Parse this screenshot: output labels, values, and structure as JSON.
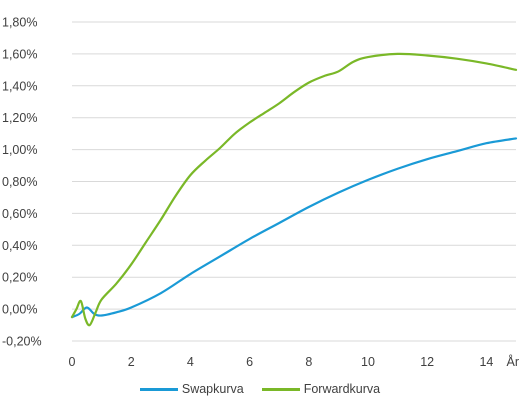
{
  "chart_data": {
    "type": "line",
    "title": "",
    "xlabel": "",
    "ylabel": "",
    "x_unit_label": "År",
    "xlim": [
      0,
      15
    ],
    "ylim": [
      -0.2,
      1.8
    ],
    "x_ticks": [
      0,
      2,
      4,
      6,
      8,
      10,
      12,
      14
    ],
    "x_tick_labels": [
      "0",
      "2",
      "4",
      "6",
      "8",
      "10",
      "12",
      "14"
    ],
    "y_ticks": [
      -0.2,
      0.0,
      0.2,
      0.4,
      0.6,
      0.8,
      1.0,
      1.2,
      1.4,
      1.6,
      1.8
    ],
    "y_tick_labels": [
      "-0,20%",
      "0,00%",
      "0,20%",
      "0,40%",
      "0,60%",
      "0,80%",
      "1,00%",
      "1,20%",
      "1,40%",
      "1,60%",
      "1,80%"
    ],
    "grid": "horizontal",
    "legend_position": "bottom",
    "series": [
      {
        "name": "Swapkurva",
        "color": "#1a9ad6",
        "points": [
          [
            0.0,
            -0.05
          ],
          [
            0.25,
            -0.03
          ],
          [
            0.5,
            0.01
          ],
          [
            0.75,
            -0.03
          ],
          [
            1.0,
            -0.04
          ],
          [
            1.5,
            -0.02
          ],
          [
            2.0,
            0.01
          ],
          [
            3.0,
            0.1
          ],
          [
            4.0,
            0.22
          ],
          [
            5.0,
            0.33
          ],
          [
            6.0,
            0.44
          ],
          [
            7.0,
            0.54
          ],
          [
            8.0,
            0.64
          ],
          [
            9.0,
            0.73
          ],
          [
            10.0,
            0.81
          ],
          [
            11.0,
            0.88
          ],
          [
            12.0,
            0.94
          ],
          [
            13.0,
            0.99
          ],
          [
            14.0,
            1.04
          ],
          [
            15.0,
            1.07
          ]
        ]
      },
      {
        "name": "Forwardkurva",
        "color": "#7ab828",
        "points": [
          [
            0.0,
            -0.05
          ],
          [
            0.15,
            0.0
          ],
          [
            0.3,
            0.05
          ],
          [
            0.45,
            -0.06
          ],
          [
            0.6,
            -0.1
          ],
          [
            0.8,
            -0.02
          ],
          [
            1.0,
            0.06
          ],
          [
            1.5,
            0.16
          ],
          [
            2.0,
            0.28
          ],
          [
            2.5,
            0.42
          ],
          [
            3.0,
            0.56
          ],
          [
            3.5,
            0.71
          ],
          [
            4.0,
            0.84
          ],
          [
            4.5,
            0.93
          ],
          [
            5.0,
            1.01
          ],
          [
            5.5,
            1.1
          ],
          [
            6.0,
            1.17
          ],
          [
            6.5,
            1.23
          ],
          [
            7.0,
            1.29
          ],
          [
            7.5,
            1.36
          ],
          [
            8.0,
            1.42
          ],
          [
            8.5,
            1.46
          ],
          [
            9.0,
            1.49
          ],
          [
            9.5,
            1.55
          ],
          [
            10.0,
            1.58
          ],
          [
            11.0,
            1.6
          ],
          [
            12.0,
            1.59
          ],
          [
            13.0,
            1.57
          ],
          [
            14.0,
            1.54
          ],
          [
            15.0,
            1.5
          ]
        ]
      }
    ]
  }
}
